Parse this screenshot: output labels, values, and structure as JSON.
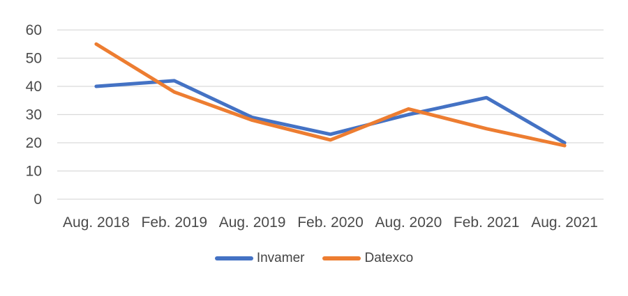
{
  "chart_data": {
    "type": "line",
    "title": "",
    "xlabel": "",
    "ylabel": "",
    "categories": [
      "Aug. 2018",
      "Feb. 2019",
      "Aug. 2019",
      "Feb. 2020",
      "Aug. 2020",
      "Feb. 2021",
      "Aug. 2021"
    ],
    "series": [
      {
        "name": "Invamer",
        "color": "#4472C4",
        "values": [
          40,
          42,
          29,
          23,
          30,
          36,
          20
        ]
      },
      {
        "name": "Datexco",
        "color": "#ED7D31",
        "values": [
          55,
          38,
          28,
          21,
          32,
          25,
          19
        ]
      }
    ],
    "ylim": [
      0,
      60
    ],
    "yticks": [
      0,
      10,
      20,
      30,
      40,
      50,
      60
    ],
    "grid": true,
    "legend_position": "bottom",
    "colors": {
      "gridline": "#D9D9D9",
      "axis_text": "#4a4a4a",
      "legend_text": "#444444",
      "background": "#ffffff"
    }
  }
}
